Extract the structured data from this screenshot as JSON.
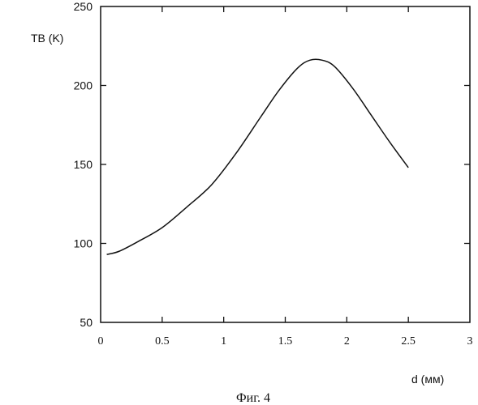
{
  "chart_data": {
    "type": "line",
    "title": "",
    "xlabel": "d (мм)",
    "ylabel": "TB (K)",
    "caption": "Фиг. 4",
    "xlim": [
      0,
      3
    ],
    "ylim": [
      50,
      250
    ],
    "xticks": [
      0,
      0.5,
      1,
      1.5,
      2,
      2.5,
      3
    ],
    "xtick_labels": [
      "0",
      "0.5",
      "1",
      "1.5",
      "2",
      "2.5",
      "3"
    ],
    "yticks": [
      50,
      100,
      150,
      200,
      250
    ],
    "ytick_labels": [
      "50",
      "100",
      "150",
      "200",
      "250"
    ],
    "grid": false,
    "series": [
      {
        "x": [
          0.05,
          0.15,
          0.3,
          0.5,
          0.7,
          0.9,
          1.1,
          1.3,
          1.45,
          1.6,
          1.7,
          1.8,
          1.9,
          2.05,
          2.2,
          2.35,
          2.5
        ],
        "y": [
          93,
          95,
          101,
          110,
          123,
          137,
          157,
          180,
          197,
          211,
          216,
          216,
          212,
          198,
          181,
          164,
          148
        ]
      }
    ]
  }
}
